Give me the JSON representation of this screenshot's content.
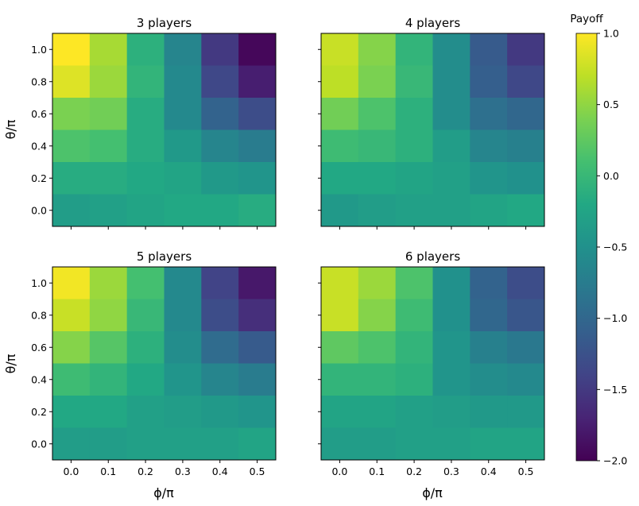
{
  "chart_data": {
    "type": "heatmap",
    "colorbar": {
      "label": "Payoff",
      "range": [
        -2.0,
        1.0
      ],
      "ticks": [
        1.0,
        0.5,
        0.0,
        -0.5,
        -1.0,
        -1.5,
        -2.0
      ],
      "tick_labels": [
        "1.0",
        "0.5",
        "0.0",
        "−0.5",
        "−1.0",
        "−1.5",
        "−2.0"
      ],
      "colormap": "viridis"
    },
    "x_label": "ϕ/π",
    "y_label": "θ/π",
    "x_values": [
      0.0,
      0.1,
      0.2,
      0.3,
      0.4,
      0.5
    ],
    "y_values": [
      0.0,
      0.2,
      0.4,
      0.6,
      0.8,
      1.0
    ],
    "x_tick_labels": [
      "0.0",
      "0.1",
      "0.2",
      "0.3",
      "0.4",
      "0.5"
    ],
    "y_tick_labels": [
      "0.0",
      "0.2",
      "0.4",
      "0.6",
      "0.8",
      "1.0"
    ],
    "panels": [
      {
        "title": "3 players",
        "values_note": "rows ordered from theta=1.0 (top) to theta=0.0 (bottom); columns phi=0.0..0.5",
        "values": [
          [
            1.0,
            0.6,
            -0.1,
            -0.65,
            -1.5,
            -1.95
          ],
          [
            0.85,
            0.55,
            -0.05,
            -0.6,
            -1.35,
            -1.75
          ],
          [
            0.4,
            0.35,
            -0.15,
            -0.6,
            -1.05,
            -1.3
          ],
          [
            0.15,
            0.1,
            -0.15,
            -0.4,
            -0.65,
            -0.75
          ],
          [
            -0.15,
            -0.15,
            -0.2,
            -0.25,
            -0.4,
            -0.45
          ],
          [
            -0.35,
            -0.3,
            -0.25,
            -0.2,
            -0.2,
            -0.15
          ]
        ]
      },
      {
        "title": "4 players",
        "values": [
          [
            0.75,
            0.45,
            -0.05,
            -0.55,
            -1.15,
            -1.5
          ],
          [
            0.7,
            0.4,
            0.0,
            -0.55,
            -1.1,
            -1.35
          ],
          [
            0.35,
            0.15,
            -0.1,
            -0.55,
            -0.9,
            -1.0
          ],
          [
            0.05,
            0.0,
            -0.1,
            -0.35,
            -0.65,
            -0.7
          ],
          [
            -0.2,
            -0.2,
            -0.25,
            -0.3,
            -0.45,
            -0.5
          ],
          [
            -0.4,
            -0.35,
            -0.3,
            -0.3,
            -0.25,
            -0.2
          ]
        ]
      },
      {
        "title": "5 players",
        "values": [
          [
            0.95,
            0.55,
            0.1,
            -0.6,
            -1.4,
            -1.8
          ],
          [
            0.75,
            0.5,
            0.0,
            -0.6,
            -1.3,
            -1.6
          ],
          [
            0.45,
            0.2,
            -0.1,
            -0.55,
            -0.95,
            -1.15
          ],
          [
            0.05,
            -0.05,
            -0.2,
            -0.45,
            -0.65,
            -0.75
          ],
          [
            -0.2,
            -0.2,
            -0.3,
            -0.35,
            -0.4,
            -0.45
          ],
          [
            -0.35,
            -0.35,
            -0.3,
            -0.3,
            -0.3,
            -0.25
          ]
        ]
      },
      {
        "title": "6 players",
        "values": [
          [
            0.75,
            0.55,
            0.15,
            -0.5,
            -1.05,
            -1.3
          ],
          [
            0.75,
            0.45,
            0.05,
            -0.5,
            -1.0,
            -1.2
          ],
          [
            0.25,
            0.15,
            -0.05,
            -0.45,
            -0.7,
            -0.8
          ],
          [
            -0.05,
            -0.05,
            -0.1,
            -0.45,
            -0.55,
            -0.6
          ],
          [
            -0.25,
            -0.25,
            -0.3,
            -0.35,
            -0.4,
            -0.4
          ],
          [
            -0.35,
            -0.35,
            -0.3,
            -0.3,
            -0.25,
            -0.25
          ]
        ]
      }
    ]
  }
}
